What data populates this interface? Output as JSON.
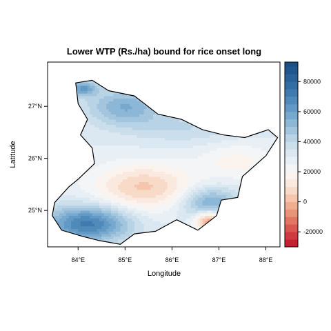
{
  "chart_data": {
    "type": "heatmap",
    "title": "Lower WTP (Rs./ha) bound for rice onset long",
    "xlabel": "Longitude",
    "ylabel": "Latitude",
    "xlim": [
      83.35,
      88.3
    ],
    "ylim": [
      24.3,
      27.85
    ],
    "x_ticks": [
      {
        "value": 84,
        "label": "84°E"
      },
      {
        "value": 85,
        "label": "85°E"
      },
      {
        "value": 86,
        "label": "86°E"
      },
      {
        "value": 87,
        "label": "87°E"
      },
      {
        "value": 88,
        "label": "88°E"
      }
    ],
    "y_ticks": [
      {
        "value": 25,
        "label": "25°N"
      },
      {
        "value": 26,
        "label": "26°N"
      },
      {
        "value": 27,
        "label": "27°N"
      }
    ],
    "colorbar": {
      "range": [
        -30000,
        93000
      ],
      "breaks": [
        -30000,
        -25000,
        -20000,
        -15000,
        -10000,
        -5000,
        0,
        5000,
        10000,
        15000,
        20000,
        25000,
        30000,
        35000,
        40000,
        45000,
        50000,
        55000,
        60000,
        65000,
        70000,
        75000,
        80000,
        85000,
        90000,
        93000
      ],
      "colors": [
        "#c61f31",
        "#cf3a40",
        "#d8584f",
        "#e17762",
        "#e99478",
        "#f0ae90",
        "#f5c6ad",
        "#f8dac8",
        "#fae9df",
        "#fbf3ee",
        "#f4f5f6",
        "#e9f0f5",
        "#dbe8f1",
        "#cbdeec",
        "#b8d3e6",
        "#a3c5de",
        "#8db7d6",
        "#77a8ce",
        "#6299c5",
        "#4f8aba",
        "#3f7bae",
        "#336ea3",
        "#2a6298",
        "#21578d",
        "#1b4e85"
      ],
      "ticks": [
        {
          "value": -20000,
          "label": "-20000"
        },
        {
          "value": 0,
          "label": "0"
        },
        {
          "value": 20000,
          "label": "20000"
        },
        {
          "value": 40000,
          "label": "40000"
        },
        {
          "value": 60000,
          "label": "60000"
        },
        {
          "value": 80000,
          "label": "80000"
        }
      ]
    },
    "value_field": {
      "base": 30000,
      "components": [
        {
          "lon": 85.4,
          "lat": 25.45,
          "sx": 1.1,
          "sy": 0.45,
          "amp": -26000
        },
        {
          "lon": 87.4,
          "lat": 25.95,
          "sx": 0.8,
          "sy": 0.35,
          "amp": -12000
        },
        {
          "lon": 86.8,
          "lat": 24.8,
          "sx": 0.3,
          "sy": 0.2,
          "amp": -40000
        },
        {
          "lon": 84.2,
          "lat": 24.75,
          "sx": 0.9,
          "sy": 0.35,
          "amp": 42000
        },
        {
          "lon": 86.8,
          "lat": 25.15,
          "sx": 0.6,
          "sy": 0.3,
          "amp": 28000
        },
        {
          "lon": 85.0,
          "lat": 27.0,
          "sx": 0.8,
          "sy": 0.35,
          "amp": 25000
        },
        {
          "lon": 86.3,
          "lat": 26.6,
          "sx": 1.3,
          "sy": 0.3,
          "amp": 10000
        },
        {
          "lon": 84.1,
          "lat": 27.35,
          "sx": 0.3,
          "sy": 0.15,
          "amp": 30000
        }
      ]
    },
    "region_outline": [
      [
        83.95,
        27.45
      ],
      [
        84.3,
        27.5
      ],
      [
        84.65,
        27.3
      ],
      [
        85.2,
        27.2
      ],
      [
        85.7,
        26.85
      ],
      [
        86.2,
        26.75
      ],
      [
        86.65,
        26.55
      ],
      [
        87.1,
        26.45
      ],
      [
        87.55,
        26.4
      ],
      [
        88.05,
        26.55
      ],
      [
        88.25,
        26.4
      ],
      [
        88.0,
        26.05
      ],
      [
        87.5,
        25.65
      ],
      [
        87.4,
        25.25
      ],
      [
        87.05,
        25.2
      ],
      [
        86.95,
        24.9
      ],
      [
        86.55,
        24.62
      ],
      [
        86.1,
        24.82
      ],
      [
        85.65,
        24.6
      ],
      [
        85.2,
        24.55
      ],
      [
        84.9,
        24.35
      ],
      [
        84.45,
        24.42
      ],
      [
        84.1,
        24.5
      ],
      [
        83.65,
        24.62
      ],
      [
        83.45,
        24.9
      ],
      [
        83.5,
        25.15
      ],
      [
        83.8,
        25.45
      ],
      [
        84.0,
        25.6
      ],
      [
        84.35,
        25.9
      ],
      [
        84.3,
        26.2
      ],
      [
        84.05,
        26.45
      ],
      [
        84.2,
        26.75
      ],
      [
        84.0,
        27.05
      ],
      [
        83.95,
        27.45
      ]
    ]
  }
}
